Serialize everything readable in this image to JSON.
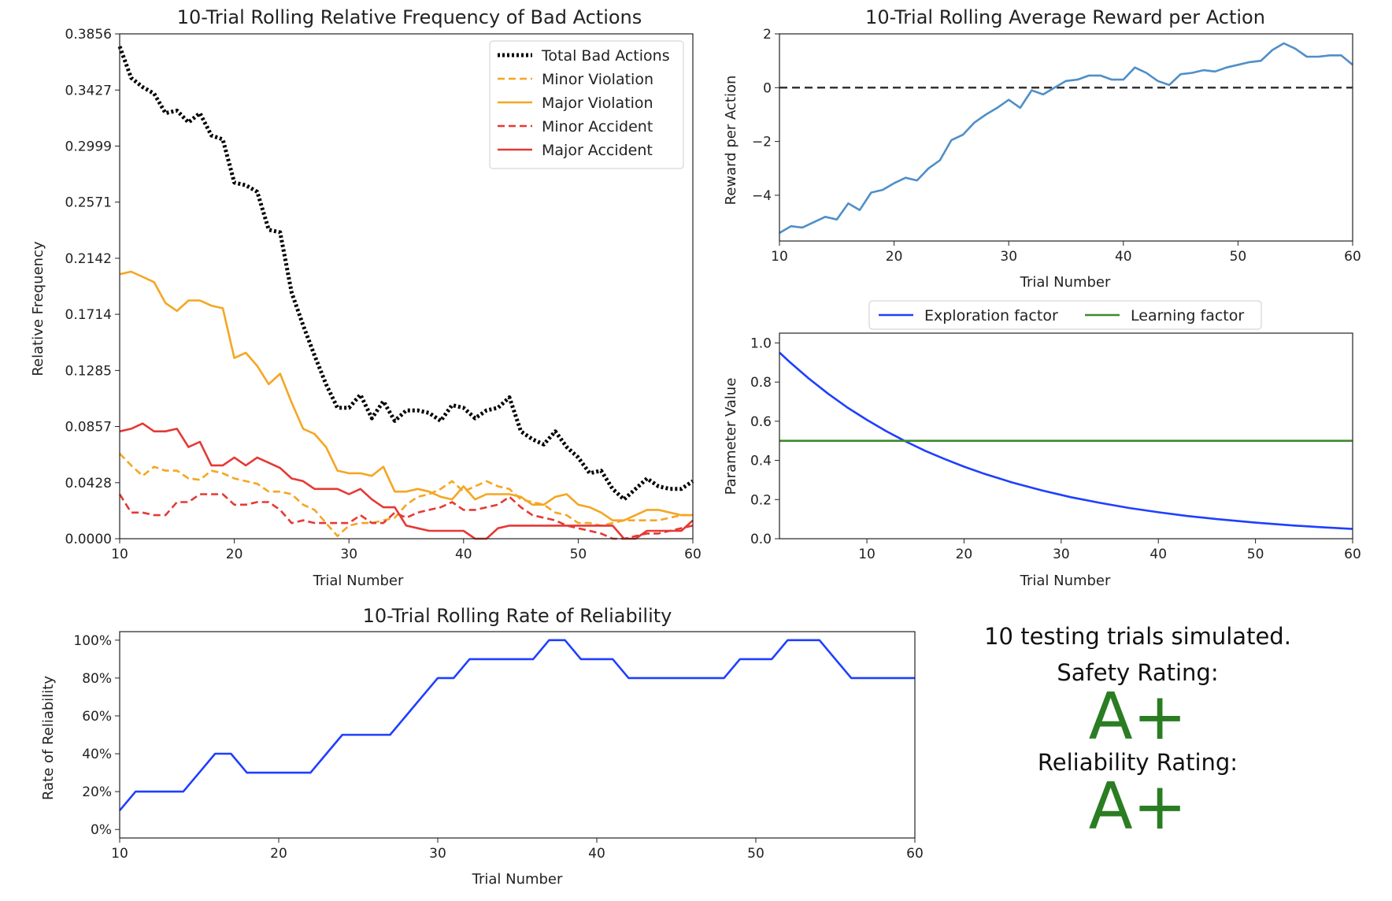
{
  "chart_data": [
    {
      "id": "bad",
      "type": "line",
      "title": "10-Trial Rolling Relative Frequency of Bad Actions",
      "xlabel": "Trial Number",
      "ylabel": "Relative Frequency",
      "xlim": [
        10,
        60
      ],
      "ylim": [
        0,
        0.3856
      ],
      "xticks": [
        10,
        20,
        30,
        40,
        50,
        60
      ],
      "xtick_labels": [
        "10",
        "20",
        "30",
        "40",
        "50",
        "60"
      ],
      "yticks": [
        0.0,
        0.0428,
        0.0857,
        0.1285,
        0.1714,
        0.2142,
        0.2571,
        0.2999,
        0.3427,
        0.3856
      ],
      "ytick_labels": [
        "0.0000",
        "0.0428",
        "0.0857",
        "0.1285",
        "0.1714",
        "0.2142",
        "0.2571",
        "0.2999",
        "0.3427",
        "0.3856"
      ],
      "legend_loc": "top-right",
      "x": [
        10,
        11,
        12,
        13,
        14,
        15,
        16,
        17,
        18,
        19,
        20,
        21,
        22,
        23,
        24,
        25,
        26,
        27,
        28,
        29,
        30,
        31,
        32,
        33,
        34,
        35,
        36,
        37,
        38,
        39,
        40,
        41,
        42,
        43,
        44,
        45,
        46,
        47,
        48,
        49,
        50,
        51,
        52,
        53,
        54,
        55,
        56,
        57,
        58,
        59,
        60
      ],
      "series": [
        {
          "name": "Total Bad Actions",
          "color": "#000000",
          "style": "dotted",
          "values": [
            0.376,
            0.352,
            0.345,
            0.34,
            0.325,
            0.327,
            0.318,
            0.325,
            0.308,
            0.305,
            0.272,
            0.27,
            0.265,
            0.236,
            0.234,
            0.188,
            0.163,
            0.14,
            0.118,
            0.1,
            0.1,
            0.11,
            0.092,
            0.105,
            0.09,
            0.098,
            0.098,
            0.096,
            0.09,
            0.102,
            0.1,
            0.092,
            0.098,
            0.1,
            0.108,
            0.082,
            0.076,
            0.072,
            0.082,
            0.07,
            0.062,
            0.05,
            0.052,
            0.038,
            0.03,
            0.038,
            0.046,
            0.04,
            0.038,
            0.038,
            0.044
          ]
        },
        {
          "name": "Minor Violation",
          "color": "#f5a623",
          "style": "dashed",
          "values": [
            0.065,
            0.056,
            0.048,
            0.055,
            0.052,
            0.052,
            0.046,
            0.045,
            0.052,
            0.05,
            0.046,
            0.044,
            0.042,
            0.036,
            0.036,
            0.034,
            0.026,
            0.022,
            0.012,
            0.002,
            0.01,
            0.012,
            0.012,
            0.014,
            0.016,
            0.026,
            0.032,
            0.034,
            0.038,
            0.044,
            0.036,
            0.04,
            0.044,
            0.04,
            0.038,
            0.03,
            0.028,
            0.026,
            0.02,
            0.018,
            0.012,
            0.012,
            0.01,
            0.012,
            0.014,
            0.014,
            0.014,
            0.014,
            0.016,
            0.018,
            0.018
          ]
        },
        {
          "name": "Major Violation",
          "color": "#f5a623",
          "style": "solid",
          "values": [
            0.202,
            0.204,
            0.2,
            0.196,
            0.18,
            0.174,
            0.182,
            0.182,
            0.178,
            0.176,
            0.138,
            0.142,
            0.132,
            0.118,
            0.126,
            0.104,
            0.084,
            0.08,
            0.07,
            0.052,
            0.05,
            0.05,
            0.048,
            0.055,
            0.036,
            0.036,
            0.038,
            0.036,
            0.032,
            0.03,
            0.04,
            0.03,
            0.034,
            0.034,
            0.034,
            0.032,
            0.026,
            0.026,
            0.032,
            0.034,
            0.026,
            0.024,
            0.02,
            0.014,
            0.014,
            0.018,
            0.022,
            0.022,
            0.02,
            0.018,
            0.018
          ]
        },
        {
          "name": "Minor Accident",
          "color": "#e53935",
          "style": "dashed",
          "values": [
            0.034,
            0.02,
            0.02,
            0.018,
            0.018,
            0.028,
            0.028,
            0.034,
            0.034,
            0.034,
            0.026,
            0.026,
            0.028,
            0.028,
            0.022,
            0.012,
            0.014,
            0.012,
            0.012,
            0.012,
            0.012,
            0.018,
            0.012,
            0.012,
            0.02,
            0.016,
            0.02,
            0.022,
            0.024,
            0.028,
            0.022,
            0.022,
            0.024,
            0.026,
            0.032,
            0.024,
            0.018,
            0.016,
            0.014,
            0.01,
            0.008,
            0.006,
            0.004,
            0.0,
            0.0,
            0.002,
            0.004,
            0.004,
            0.006,
            0.008,
            0.01
          ]
        },
        {
          "name": "Major Accident",
          "color": "#e53935",
          "style": "solid",
          "values": [
            0.082,
            0.084,
            0.088,
            0.082,
            0.082,
            0.084,
            0.07,
            0.074,
            0.056,
            0.056,
            0.062,
            0.056,
            0.062,
            0.058,
            0.054,
            0.046,
            0.044,
            0.038,
            0.038,
            0.038,
            0.034,
            0.038,
            0.03,
            0.024,
            0.024,
            0.01,
            0.008,
            0.006,
            0.006,
            0.006,
            0.006,
            0.0,
            0.0,
            0.008,
            0.01,
            0.01,
            0.01,
            0.01,
            0.01,
            0.01,
            0.01,
            0.01,
            0.01,
            0.01,
            0.0,
            0.0,
            0.006,
            0.006,
            0.006,
            0.006,
            0.014
          ]
        }
      ]
    },
    {
      "id": "reward",
      "type": "line",
      "title": "10-Trial Rolling Average Reward per Action",
      "xlabel": "Trial Number",
      "ylabel": "Reward per Action",
      "xlim": [
        10,
        60
      ],
      "ylim": [
        -5.7,
        2.0
      ],
      "xticks": [
        10,
        20,
        30,
        40,
        50,
        60
      ],
      "xtick_labels": [
        "10",
        "20",
        "30",
        "40",
        "50",
        "60"
      ],
      "yticks": [
        2,
        0,
        -2,
        -4
      ],
      "ytick_labels": [
        "2",
        "0",
        "−2",
        "−4"
      ],
      "reference_line": {
        "y": 0,
        "color": "#333333",
        "style": "dashed"
      },
      "x": [
        10,
        11,
        12,
        13,
        14,
        15,
        16,
        17,
        18,
        19,
        20,
        21,
        22,
        23,
        24,
        25,
        26,
        27,
        28,
        29,
        30,
        31,
        32,
        33,
        34,
        35,
        36,
        37,
        38,
        39,
        40,
        41,
        42,
        43,
        44,
        45,
        46,
        47,
        48,
        49,
        50,
        51,
        52,
        53,
        54,
        55,
        56,
        57,
        58,
        59,
        60
      ],
      "series": [
        {
          "name": "Reward per Action",
          "color": "#4f8fc8",
          "style": "solid",
          "values": [
            -5.4,
            -5.15,
            -5.2,
            -5.0,
            -4.8,
            -4.9,
            -4.3,
            -4.55,
            -3.9,
            -3.8,
            -3.55,
            -3.35,
            -3.45,
            -3.0,
            -2.7,
            -1.95,
            -1.75,
            -1.3,
            -1.0,
            -0.75,
            -0.45,
            -0.75,
            -0.1,
            -0.25,
            0.0,
            0.25,
            0.3,
            0.45,
            0.45,
            0.3,
            0.3,
            0.75,
            0.55,
            0.25,
            0.1,
            0.5,
            0.55,
            0.65,
            0.6,
            0.75,
            0.85,
            0.95,
            1.0,
            1.4,
            1.65,
            1.45,
            1.15,
            1.15,
            1.2,
            1.2,
            0.85
          ]
        }
      ]
    },
    {
      "id": "params",
      "type": "line",
      "title": "",
      "xlabel": "Trial Number",
      "ylabel": "Parameter Value",
      "xlim": [
        1,
        60
      ],
      "ylim": [
        0.0,
        1.05
      ],
      "xticks": [
        10,
        20,
        30,
        40,
        50,
        60
      ],
      "xtick_labels": [
        "10",
        "20",
        "30",
        "40",
        "50",
        "60"
      ],
      "yticks": [
        0.0,
        0.2,
        0.4,
        0.6,
        0.8,
        1.0
      ],
      "ytick_labels": [
        "0.0",
        "0.2",
        "0.4",
        "0.6",
        "0.8",
        "1.0"
      ],
      "legend_loc": "top-center",
      "x": [
        1,
        2,
        4,
        6,
        8,
        10,
        12,
        14,
        16,
        18,
        20,
        22,
        25,
        28,
        31,
        34,
        37,
        40,
        43,
        46,
        50,
        54,
        57,
        60
      ],
      "series": [
        {
          "name": "Exploration factor",
          "color": "#1f3fff",
          "style": "solid",
          "values": [
            0.951,
            0.905,
            0.819,
            0.741,
            0.67,
            0.607,
            0.549,
            0.497,
            0.449,
            0.407,
            0.368,
            0.333,
            0.287,
            0.247,
            0.212,
            0.183,
            0.157,
            0.135,
            0.116,
            0.1,
            0.082,
            0.067,
            0.058,
            0.05
          ]
        },
        {
          "name": "Learning factor",
          "color": "#3d8a2a",
          "style": "solid",
          "values": [
            0.5,
            0.5,
            0.5,
            0.5,
            0.5,
            0.5,
            0.5,
            0.5,
            0.5,
            0.5,
            0.5,
            0.5,
            0.5,
            0.5,
            0.5,
            0.5,
            0.5,
            0.5,
            0.5,
            0.5,
            0.5,
            0.5,
            0.5,
            0.5
          ]
        }
      ]
    },
    {
      "id": "rel",
      "type": "line",
      "title": "10-Trial Rolling Rate of Reliability",
      "xlabel": "Trial Number",
      "ylabel": "Rate of Reliability",
      "xlim": [
        10,
        60
      ],
      "ylim": [
        -0.045,
        1.045
      ],
      "xticks": [
        10,
        20,
        30,
        40,
        50,
        60
      ],
      "xtick_labels": [
        "10",
        "20",
        "30",
        "40",
        "50",
        "60"
      ],
      "yticks": [
        0.0,
        0.2,
        0.4,
        0.6,
        0.8,
        1.0
      ],
      "ytick_labels": [
        "0%",
        "20%",
        "40%",
        "60%",
        "80%",
        "100%"
      ],
      "x": [
        10,
        11,
        12,
        13,
        14,
        15,
        16,
        17,
        18,
        19,
        20,
        21,
        22,
        23,
        24,
        25,
        26,
        27,
        28,
        29,
        30,
        31,
        32,
        33,
        34,
        35,
        36,
        37,
        38,
        39,
        40,
        41,
        42,
        43,
        44,
        45,
        46,
        47,
        48,
        49,
        50,
        51,
        52,
        53,
        54,
        55,
        56,
        57,
        58,
        59,
        60
      ],
      "series": [
        {
          "name": "Reliability",
          "color": "#1f3fff",
          "style": "solid",
          "values": [
            0.1,
            0.2,
            0.2,
            0.2,
            0.2,
            0.3,
            0.4,
            0.4,
            0.3,
            0.3,
            0.3,
            0.3,
            0.3,
            0.4,
            0.5,
            0.5,
            0.5,
            0.5,
            0.6,
            0.7,
            0.8,
            0.8,
            0.9,
            0.9,
            0.9,
            0.9,
            0.9,
            1.0,
            1.0,
            0.9,
            0.9,
            0.9,
            0.8,
            0.8,
            0.8,
            0.8,
            0.8,
            0.8,
            0.8,
            0.9,
            0.9,
            0.9,
            1.0,
            1.0,
            1.0,
            0.9,
            0.8,
            0.8,
            0.8,
            0.8,
            0.8
          ]
        }
      ]
    }
  ],
  "summary": {
    "trials_text": "10 testing trials simulated.",
    "safety_label": "Safety Rating:",
    "safety_grade": "A+",
    "reliability_label": "Reliability Rating:",
    "reliability_grade": "A+"
  }
}
